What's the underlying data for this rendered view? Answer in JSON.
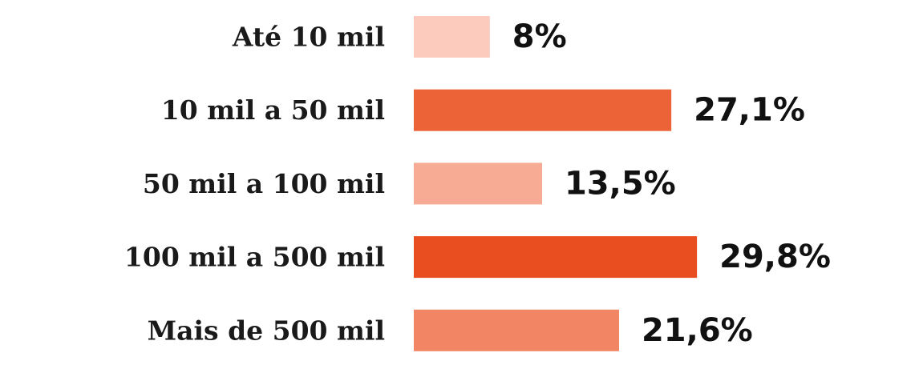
{
  "chart_data": {
    "type": "bar",
    "orientation": "horizontal",
    "categories": [
      "Até 10 mil",
      "10 mil a 50 mil",
      "50 mil a 100 mil",
      "100 mil a 500 mil",
      "Mais de 500 mil"
    ],
    "values": [
      8,
      27.1,
      13.5,
      29.8,
      21.6
    ],
    "value_labels": [
      "8%",
      "27,1%",
      "13,5%",
      "29,8%",
      "21,6%"
    ],
    "colors": [
      "#fccbbd",
      "#ec6338",
      "#f7ab94",
      "#e84e1f",
      "#f28564"
    ],
    "title": "",
    "xlabel": "",
    "ylabel": "",
    "grid": false,
    "legend": "none"
  }
}
